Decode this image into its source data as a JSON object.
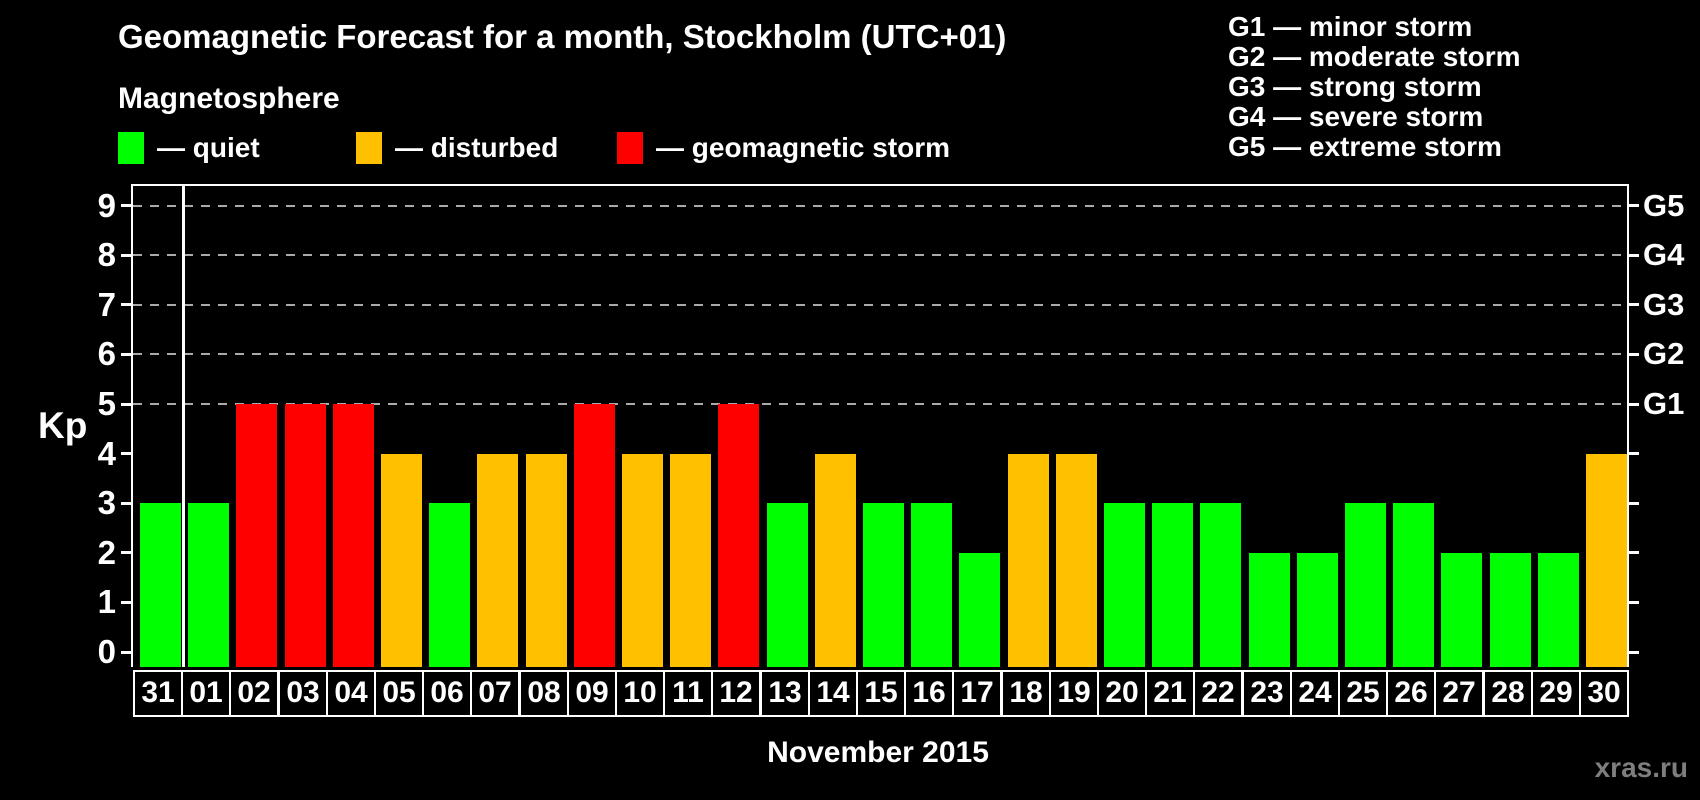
{
  "title": "Geomagnetic Forecast for a month, Stockholm (UTC+01)",
  "subtitle": "Magnetosphere",
  "legend": [
    {
      "key": "quiet",
      "label": "— quiet"
    },
    {
      "key": "disturbed",
      "label": "— disturbed"
    },
    {
      "key": "storm",
      "label": "— geomagnetic storm"
    }
  ],
  "g_legend": [
    "G1 — minor storm",
    "G2 — moderate storm",
    "G3 — strong storm",
    "G4 — severe storm",
    "G5 — extreme storm"
  ],
  "colors": {
    "quiet": "#00ff00",
    "disturbed": "#ffc000",
    "storm": "#ff0000",
    "grid": "#aaaaaa",
    "axis": "#ffffff",
    "background": "#000000",
    "watermark_text": "#7e7e7e"
  },
  "chart_data": {
    "type": "bar",
    "title": "Geomagnetic Forecast for a month, Stockholm (UTC+01)",
    "ylabel": "Kp",
    "xlabel": "November 2015",
    "ylim": [
      0,
      9
    ],
    "yticks": [
      0,
      1,
      2,
      3,
      4,
      5,
      6,
      7,
      8,
      9
    ],
    "grid_levels": [
      5,
      6,
      7,
      8,
      9
    ],
    "grid_style": "dashed",
    "legend_position": "top",
    "right_ticks": [
      {
        "kp": 5,
        "label": "G1"
      },
      {
        "kp": 6,
        "label": "G2"
      },
      {
        "kp": 7,
        "label": "G3"
      },
      {
        "kp": 8,
        "label": "G4"
      },
      {
        "kp": 9,
        "label": "G5"
      }
    ],
    "categories": [
      "31",
      "01",
      "02",
      "03",
      "04",
      "05",
      "06",
      "07",
      "08",
      "09",
      "10",
      "11",
      "12",
      "13",
      "14",
      "15",
      "16",
      "17",
      "18",
      "19",
      "20",
      "21",
      "22",
      "23",
      "24",
      "25",
      "26",
      "27",
      "28",
      "29",
      "30"
    ],
    "values": [
      3,
      3,
      5,
      5,
      5,
      4,
      3,
      4,
      4,
      5,
      4,
      4,
      5,
      3,
      4,
      3,
      3,
      2,
      4,
      4,
      3,
      3,
      3,
      2,
      2,
      3,
      3,
      2,
      2,
      2,
      4
    ],
    "statuses": [
      "quiet",
      "quiet",
      "storm",
      "storm",
      "storm",
      "disturbed",
      "quiet",
      "disturbed",
      "disturbed",
      "storm",
      "disturbed",
      "disturbed",
      "storm",
      "quiet",
      "disturbed",
      "quiet",
      "quiet",
      "quiet",
      "disturbed",
      "disturbed",
      "quiet",
      "quiet",
      "quiet",
      "quiet",
      "quiet",
      "quiet",
      "quiet",
      "quiet",
      "quiet",
      "quiet",
      "disturbed"
    ],
    "separator_after_index": 0
  },
  "footer": {
    "watermark": "xras.ru"
  }
}
